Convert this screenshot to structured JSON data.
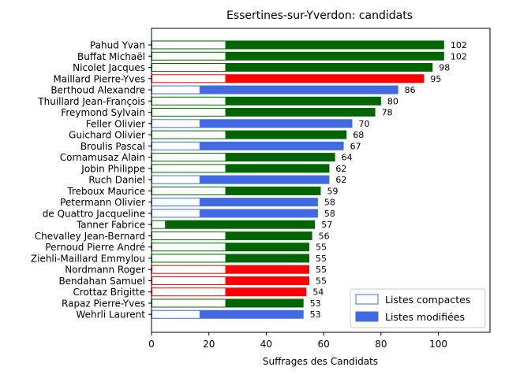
{
  "chart_data": {
    "type": "bar",
    "orientation": "horizontal",
    "title": "Essertines-sur-Yverdon: candidats",
    "xlabel": "Suffrages des Candidats",
    "ylabel": "",
    "xlim": [
      0,
      118
    ],
    "xticks": [
      0,
      20,
      40,
      60,
      80,
      100
    ],
    "grid": false,
    "legend_position": "lower-right",
    "colors": {
      "green": "#006400",
      "red": "#ff0000",
      "blue": "#4169e1"
    },
    "legend": [
      {
        "label": "Listes compactes",
        "style": "outline"
      },
      {
        "label": "Listes modifiées",
        "style": "filled"
      }
    ],
    "bars": [
      {
        "name": "Pahud Yvan",
        "compact": 26,
        "total": 102,
        "color": "green"
      },
      {
        "name": "Buffat Michaël",
        "compact": 26,
        "total": 102,
        "color": "green"
      },
      {
        "name": "Nicolet Jacques",
        "compact": 26,
        "total": 98,
        "color": "green"
      },
      {
        "name": "Maillard Pierre-Yves",
        "compact": 26,
        "total": 95,
        "color": "red"
      },
      {
        "name": "Berthoud Alexandre",
        "compact": 17,
        "total": 86,
        "color": "blue"
      },
      {
        "name": "Thuillard Jean-François",
        "compact": 26,
        "total": 80,
        "color": "green"
      },
      {
        "name": "Freymond Sylvain",
        "compact": 26,
        "total": 78,
        "color": "green"
      },
      {
        "name": "Feller Olivier",
        "compact": 17,
        "total": 70,
        "color": "blue"
      },
      {
        "name": "Guichard Olivier",
        "compact": 26,
        "total": 68,
        "color": "green"
      },
      {
        "name": "Broulis Pascal",
        "compact": 17,
        "total": 67,
        "color": "blue"
      },
      {
        "name": "Cornamusaz Alain",
        "compact": 26,
        "total": 64,
        "color": "green"
      },
      {
        "name": "Jobin Philippe",
        "compact": 26,
        "total": 62,
        "color": "green"
      },
      {
        "name": "Ruch Daniel",
        "compact": 17,
        "total": 62,
        "color": "blue"
      },
      {
        "name": "Treboux Maurice",
        "compact": 26,
        "total": 59,
        "color": "green"
      },
      {
        "name": "Petermann Olivier",
        "compact": 17,
        "total": 58,
        "color": "blue"
      },
      {
        "name": "de Quattro Jacqueline",
        "compact": 17,
        "total": 58,
        "color": "blue"
      },
      {
        "name": "Tanner Fabrice",
        "compact": 5,
        "total": 57,
        "color": "green"
      },
      {
        "name": "Chevalley Jean-Bernard",
        "compact": 26,
        "total": 56,
        "color": "green"
      },
      {
        "name": "Pernoud Pierre André",
        "compact": 26,
        "total": 55,
        "color": "green"
      },
      {
        "name": "Ziehli-Maillard Emmylou",
        "compact": 26,
        "total": 55,
        "color": "green"
      },
      {
        "name": "Nordmann Roger",
        "compact": 26,
        "total": 55,
        "color": "red"
      },
      {
        "name": "Bendahan Samuel",
        "compact": 26,
        "total": 55,
        "color": "red"
      },
      {
        "name": "Crottaz Brigitte",
        "compact": 26,
        "total": 54,
        "color": "red"
      },
      {
        "name": "Rapaz Pierre-Yves",
        "compact": 26,
        "total": 53,
        "color": "green"
      },
      {
        "name": "Wehrli Laurent",
        "compact": 17,
        "total": 53,
        "color": "blue"
      }
    ]
  }
}
